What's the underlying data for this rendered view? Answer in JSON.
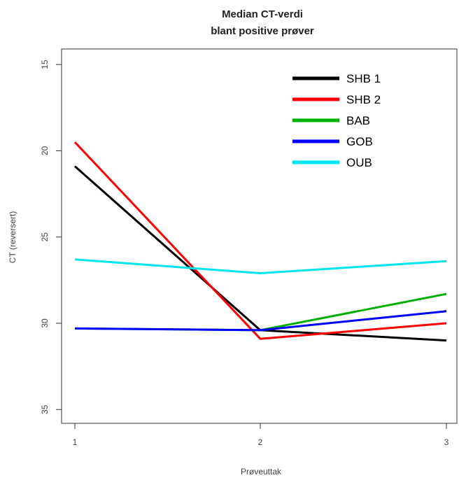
{
  "chart_data": {
    "type": "line",
    "title_line1": "Median CT-verdi",
    "title_line2": "blant positive prøver",
    "xlabel": "Prøveuttak",
    "ylabel": "CT (reversert)",
    "x": [
      1,
      2,
      3
    ],
    "x_ticks": [
      "1",
      "2",
      "3"
    ],
    "y_ticks": [
      "15",
      "20",
      "25",
      "30",
      "35"
    ],
    "y_tick_values": [
      15,
      20,
      25,
      30,
      35
    ],
    "ylim": [
      35.8,
      14.1
    ],
    "y_reversed": true,
    "grid": false,
    "legend_position": "top-right",
    "series": [
      {
        "name": "SHB 1",
        "color": "#000000",
        "values": [
          20.9,
          30.4,
          31.0
        ]
      },
      {
        "name": "SHB 2",
        "color": "#ff0000",
        "values": [
          19.5,
          30.9,
          30.0
        ]
      },
      {
        "name": "BAB",
        "color": "#00b000",
        "values": [
          30.3,
          30.4,
          28.3
        ]
      },
      {
        "name": "GOB",
        "color": "#0000ff",
        "values": [
          30.3,
          30.4,
          29.3
        ]
      },
      {
        "name": "OUB",
        "color": "#00e5ee",
        "values": [
          26.3,
          27.1,
          26.4
        ]
      }
    ]
  }
}
